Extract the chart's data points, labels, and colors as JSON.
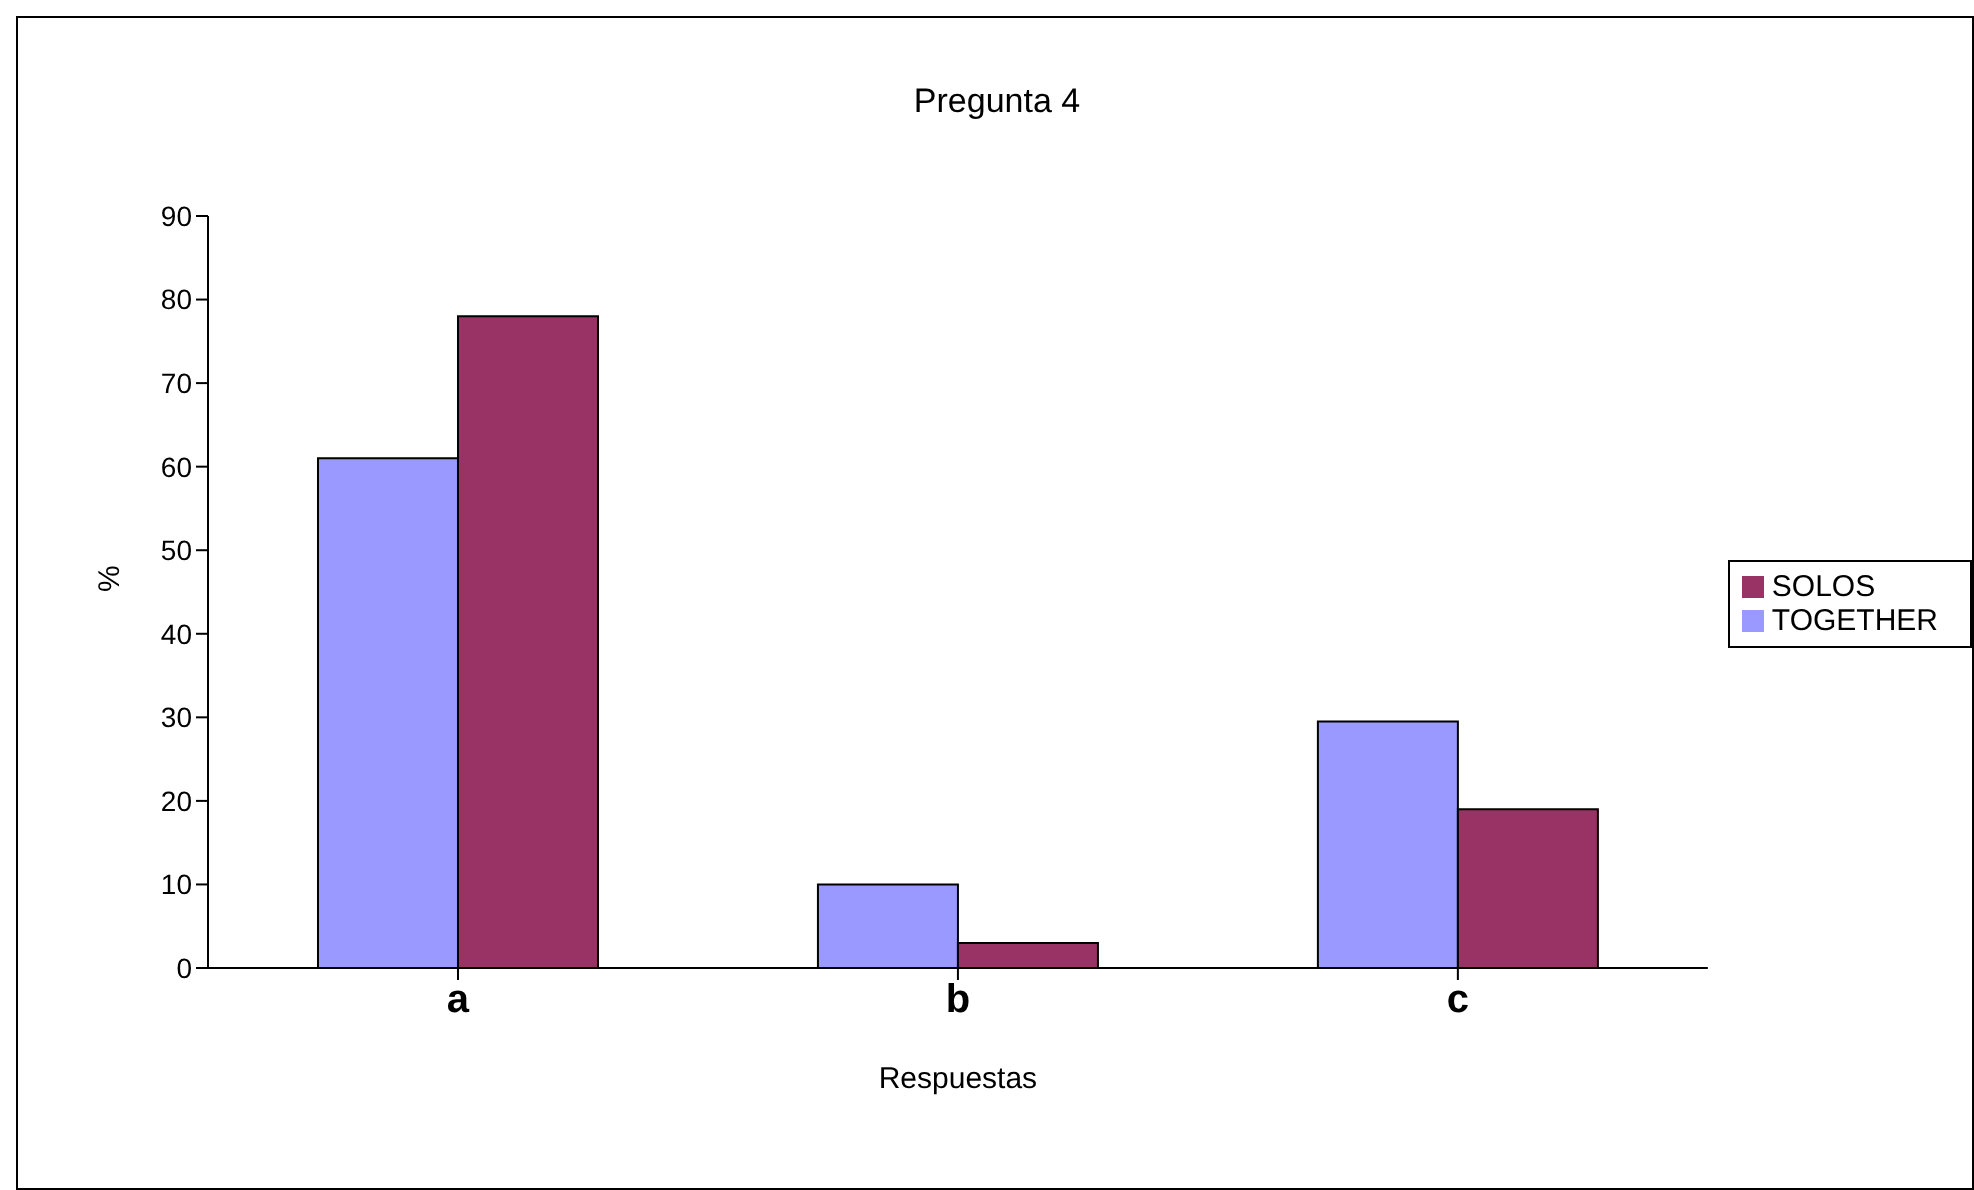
{
  "chart_data": {
    "type": "bar",
    "title": "Pregunta 4",
    "xlabel": "Respuestas",
    "ylabel": "%",
    "categories": [
      "a",
      "b",
      "c"
    ],
    "series": [
      {
        "name": "TOGETHER",
        "color": "#9999ff",
        "values": [
          61,
          10,
          29.5
        ]
      },
      {
        "name": "SOLOS",
        "color": "#993366",
        "values": [
          78,
          3,
          19
        ]
      }
    ],
    "ylim": [
      0,
      90
    ],
    "yticks": [
      0,
      10,
      20,
      30,
      40,
      50,
      60,
      70,
      80,
      90
    ],
    "grid": false,
    "legend": "right"
  }
}
